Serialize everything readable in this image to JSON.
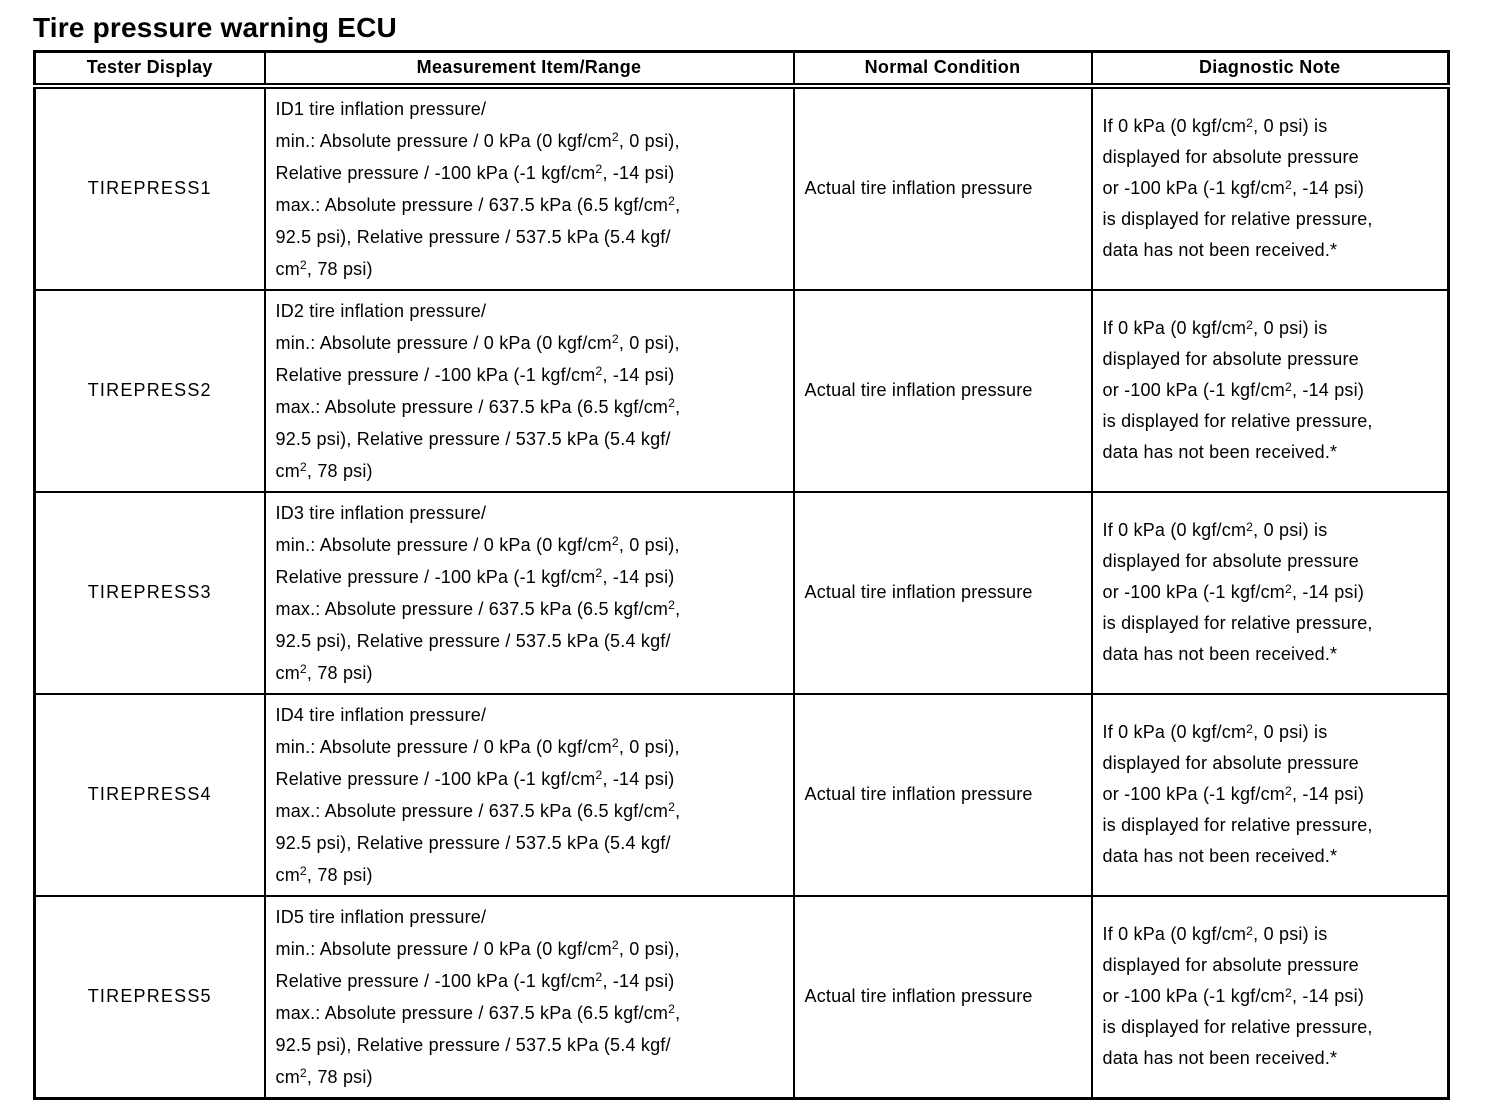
{
  "title": "Tire pressure warning ECU",
  "colors": {
    "background": "#ffffff",
    "text": "#000000",
    "border": "#000000"
  },
  "table": {
    "headers": [
      "Tester Display",
      "Measurement Item/Range",
      "Normal Condition",
      "Diagnostic Note"
    ],
    "rows": [
      {
        "tester_display": "TIREPRESS1",
        "measurement_lines": [
          "ID1 tire inflation pressure/",
          "min.: Absolute pressure / 0 kPa (0 kgf/cm^2, 0 psi),",
          "Relative pressure / -100 kPa (-1 kgf/cm^2, -14 psi)",
          "max.: Absolute pressure / 637.5 kPa (6.5 kgf/cm^2,",
          "92.5 psi), Relative pressure / 537.5 kPa (5.4 kgf/",
          "cm^2, 78 psi)"
        ],
        "normal_condition": "Actual tire inflation pressure",
        "diagnostic_lines": [
          "If 0 kPa (0 kgf/cm^2, 0 psi) is",
          "displayed for absolute pressure",
          "or -100 kPa (-1 kgf/cm^2, -14 psi)",
          "is displayed for relative pressure,",
          "data has not been received.*"
        ]
      },
      {
        "tester_display": "TIREPRESS2",
        "measurement_lines": [
          "ID2 tire inflation pressure/",
          "min.: Absolute pressure / 0 kPa (0 kgf/cm^2, 0 psi),",
          "Relative pressure / -100 kPa (-1 kgf/cm^2, -14 psi)",
          "max.: Absolute pressure / 637.5 kPa (6.5 kgf/cm^2,",
          "92.5 psi), Relative pressure / 537.5 kPa (5.4 kgf/",
          "cm^2, 78 psi)"
        ],
        "normal_condition": "Actual tire inflation pressure",
        "diagnostic_lines": [
          "If 0 kPa (0 kgf/cm^2, 0 psi) is",
          "displayed for absolute pressure",
          "or -100 kPa (-1 kgf/cm^2, -14 psi)",
          "is displayed for relative pressure,",
          "data has not been received.*"
        ]
      },
      {
        "tester_display": "TIREPRESS3",
        "measurement_lines": [
          "ID3 tire inflation pressure/",
          "min.: Absolute pressure / 0 kPa (0 kgf/cm^2, 0 psi),",
          "Relative pressure / -100 kPa (-1 kgf/cm^2, -14 psi)",
          "max.: Absolute pressure / 637.5 kPa (6.5 kgf/cm^2,",
          "92.5 psi), Relative pressure / 537.5 kPa (5.4 kgf/",
          "cm^2, 78 psi)"
        ],
        "normal_condition": "Actual tire inflation pressure",
        "diagnostic_lines": [
          "If 0 kPa (0 kgf/cm^2, 0 psi) is",
          "displayed for absolute pressure",
          "or -100 kPa (-1 kgf/cm^2, -14 psi)",
          "is displayed for relative pressure,",
          "data has not been received.*"
        ]
      },
      {
        "tester_display": "TIREPRESS4",
        "measurement_lines": [
          "ID4 tire inflation pressure/",
          "min.: Absolute pressure / 0 kPa (0 kgf/cm^2, 0 psi),",
          "Relative pressure / -100 kPa (-1 kgf/cm^2, -14 psi)",
          "max.: Absolute pressure / 637.5 kPa (6.5 kgf/cm^2,",
          "92.5 psi), Relative pressure / 537.5 kPa (5.4 kgf/",
          "cm^2, 78 psi)"
        ],
        "normal_condition": "Actual tire inflation pressure",
        "diagnostic_lines": [
          "If 0 kPa (0 kgf/cm^2, 0 psi) is",
          "displayed for absolute pressure",
          "or -100 kPa (-1 kgf/cm^2, -14 psi)",
          "is displayed for relative pressure,",
          "data has not been received.*"
        ]
      },
      {
        "tester_display": "TIREPRESS5",
        "measurement_lines": [
          "ID5 tire inflation pressure/",
          "min.: Absolute pressure / 0 kPa (0 kgf/cm^2, 0 psi),",
          "Relative pressure / -100 kPa (-1 kgf/cm^2, -14 psi)",
          "max.: Absolute pressure / 637.5 kPa (6.5 kgf/cm^2,",
          "92.5 psi), Relative pressure / 537.5 kPa (5.4 kgf/",
          "cm^2, 78 psi)"
        ],
        "normal_condition": "Actual tire inflation pressure",
        "diagnostic_lines": [
          "If 0 kPa (0 kgf/cm^2, 0 psi) is",
          "displayed for absolute pressure",
          "or -100 kPa (-1 kgf/cm^2, -14 psi)",
          "is displayed for relative pressure,",
          "data has not been received.*"
        ]
      }
    ]
  }
}
